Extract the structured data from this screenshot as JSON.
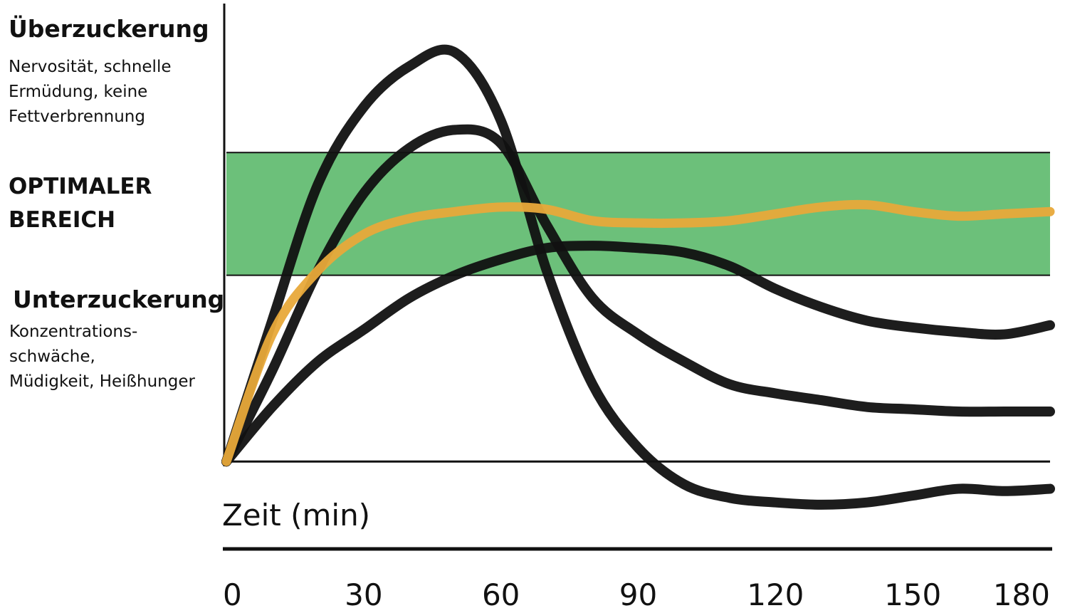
{
  "chart_data": {
    "type": "line",
    "x_label": "Zeit (min)",
    "x": [
      0,
      10,
      20,
      30,
      40,
      50,
      60,
      70,
      80,
      90,
      100,
      110,
      120,
      130,
      140,
      150,
      160,
      170,
      180
    ],
    "xlim": [
      0,
      180
    ],
    "xticks": [
      0,
      30,
      60,
      90,
      120,
      150,
      180
    ],
    "ylim": [
      -15,
      100
    ],
    "band": {
      "range": [
        41,
        68
      ],
      "color": "#6cc07a"
    },
    "annotations": [
      {
        "title": "Überzuckerung",
        "lines": [
          "Nervosität, schnelle",
          "Ermüdung, keine",
          "Fettverbrennung"
        ]
      },
      {
        "title": "",
        "lines": [
          "OPTIMALER",
          "BEREICH"
        ]
      },
      {
        "title": "Unterzuckerung",
        "lines": [
          "Konzentrations-",
          "schwäche,",
          "Müdigkeit, Heißhunger"
        ]
      }
    ],
    "series": [
      {
        "color": "#111111",
        "values": [
          0,
          31,
          61,
          78,
          87,
          90,
          75,
          42,
          17,
          3,
          -5,
          -8,
          -9,
          -9.5,
          -9,
          -7.5,
          -6,
          -6.5,
          -6
        ]
      },
      {
        "color": "#111111",
        "values": [
          0,
          20,
          42,
          59,
          69,
          73,
          70,
          52,
          36,
          28,
          22,
          17,
          15,
          13.5,
          12,
          11.5,
          11,
          11,
          11
        ]
      },
      {
        "color": "#111111",
        "values": [
          0,
          12,
          22,
          29,
          36,
          41,
          44.5,
          47,
          47.5,
          47,
          46,
          43,
          38,
          34,
          31,
          29.5,
          28.5,
          28,
          30
        ]
      },
      {
        "color": "#e8a93a",
        "values": [
          0,
          28,
          42,
          50,
          53.5,
          55,
          56,
          55.5,
          53,
          52.5,
          52.5,
          53,
          54.5,
          56,
          56.5,
          55,
          54,
          54.5,
          55
        ]
      }
    ]
  }
}
